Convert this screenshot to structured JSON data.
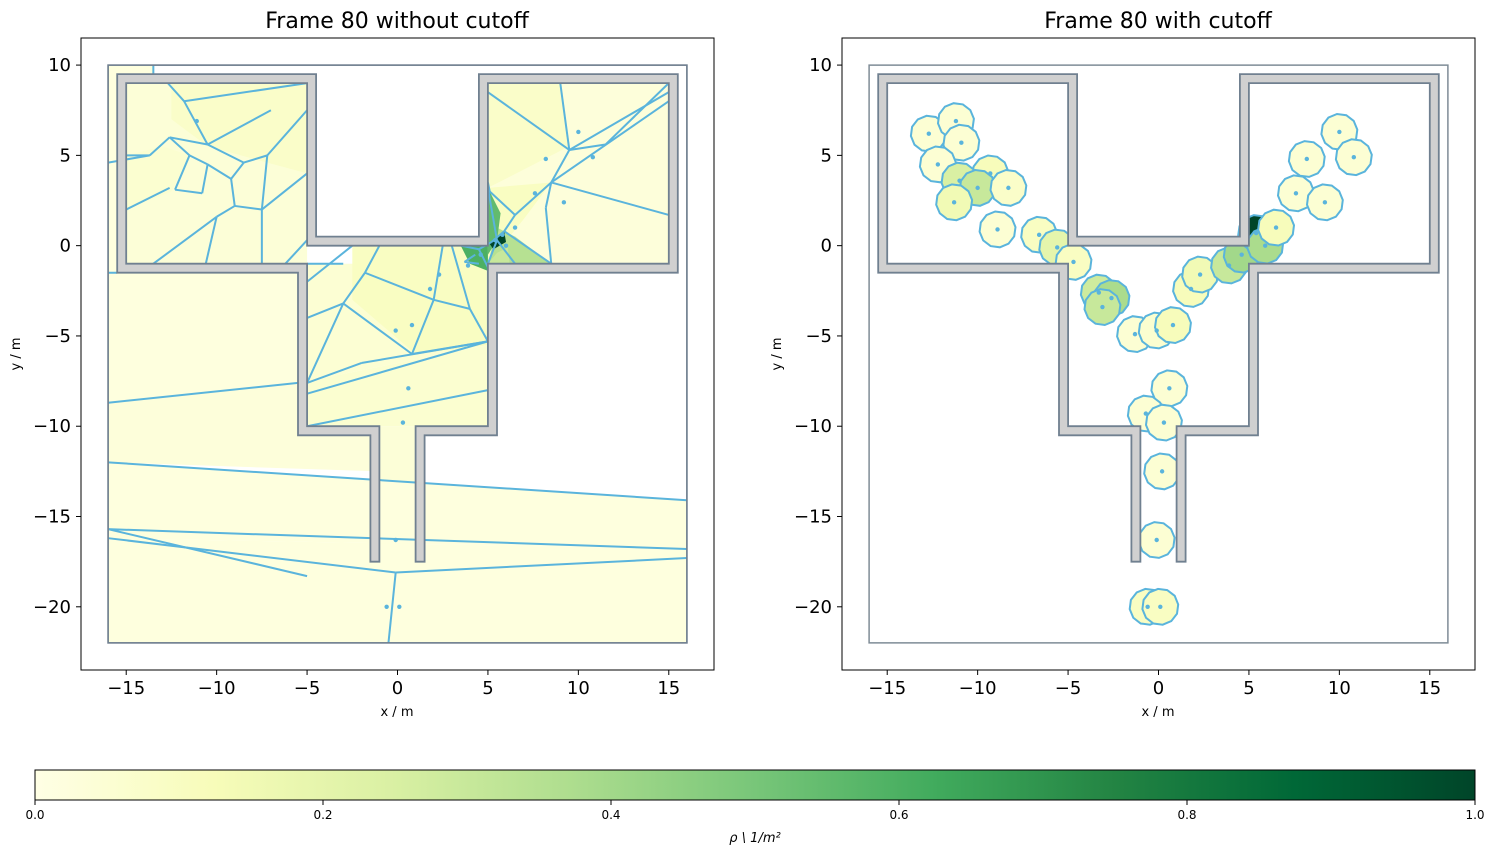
{
  "chart_data": [
    {
      "type": "voronoi-map",
      "title": "Frame 80 without cutoff",
      "xlabel": "x / m",
      "ylabel": "y / m",
      "xlim": [
        -17.5,
        17.5
      ],
      "ylim": [
        -23.5,
        11.5
      ],
      "xticks": [
        -15,
        -10,
        -5,
        0,
        5,
        10,
        15
      ],
      "yticks": [
        10,
        5,
        0,
        -5,
        -10,
        -15,
        -20
      ],
      "tick_labels_x": [
        "−15",
        "−10",
        "−5",
        "0",
        "5",
        "10",
        "15"
      ],
      "tick_labels_y": [
        "10",
        "5",
        "0",
        "−5",
        "−10",
        "−15",
        "−20"
      ],
      "points": [
        [
          -11.1,
          6.9
        ],
        [
          8.2,
          4.8
        ],
        [
          10.0,
          6.3
        ],
        [
          10.8,
          4.9
        ],
        [
          7.6,
          2.9
        ],
        [
          9.2,
          2.4
        ],
        [
          6.5,
          1.0
        ],
        [
          5.8,
          0.6
        ],
        [
          5.4,
          0.3
        ],
        [
          6.0,
          0.0
        ],
        [
          4.6,
          -0.5
        ],
        [
          3.9,
          -1.1
        ],
        [
          2.3,
          -1.6
        ],
        [
          1.8,
          -2.4
        ],
        [
          0.8,
          -4.4
        ],
        [
          -0.1,
          -4.7
        ],
        [
          0.6,
          -7.9
        ],
        [
          0.3,
          -9.8
        ],
        [
          -0.1,
          -16.3
        ],
        [
          -0.6,
          -20.0
        ],
        [
          0.1,
          -20.0
        ]
      ]
    },
    {
      "type": "voronoi-map",
      "title": "Frame 80 with cutoff",
      "xlabel": "x / m",
      "ylabel": "y / m",
      "xlim": [
        -17.5,
        17.5
      ],
      "ylim": [
        -23.5,
        11.5
      ],
      "xticks": [
        -15,
        -10,
        -5,
        0,
        5,
        10,
        15
      ],
      "yticks": [
        10,
        5,
        0,
        -5,
        -10,
        -15,
        -20
      ],
      "tick_labels_x": [
        "−15",
        "−10",
        "−5",
        "0",
        "5",
        "10",
        "15"
      ],
      "tick_labels_y": [
        "10",
        "5",
        "0",
        "−5",
        "−10",
        "−15",
        "−20"
      ],
      "cutoff_radius": 1.0,
      "cells": [
        {
          "x": -12.7,
          "y": 6.2,
          "rho": 0.05
        },
        {
          "x": -11.2,
          "y": 6.9,
          "rho": 0.05
        },
        {
          "x": -10.9,
          "y": 5.7,
          "rho": 0.05
        },
        {
          "x": -12.2,
          "y": 4.5,
          "rho": 0.05
        },
        {
          "x": -9.3,
          "y": 4.0,
          "rho": 0.12
        },
        {
          "x": -11.0,
          "y": 3.6,
          "rho": 0.25
        },
        {
          "x": -10.0,
          "y": 3.2,
          "rho": 0.3
        },
        {
          "x": -8.3,
          "y": 3.2,
          "rho": 0.08
        },
        {
          "x": -11.3,
          "y": 2.4,
          "rho": 0.15
        },
        {
          "x": -8.9,
          "y": 0.9,
          "rho": 0.05
        },
        {
          "x": -6.6,
          "y": 0.6,
          "rho": 0.1
        },
        {
          "x": -5.6,
          "y": -0.1,
          "rho": 0.2
        },
        {
          "x": -4.7,
          "y": -0.9,
          "rho": 0.1
        },
        {
          "x": -3.3,
          "y": -2.6,
          "rho": 0.28
        },
        {
          "x": -2.6,
          "y": -2.9,
          "rho": 0.38
        },
        {
          "x": -3.1,
          "y": -3.4,
          "rho": 0.3
        },
        {
          "x": -1.3,
          "y": -4.9,
          "rho": 0.05
        },
        {
          "x": -0.1,
          "y": -4.7,
          "rho": 0.06
        },
        {
          "x": 0.8,
          "y": -4.4,
          "rho": 0.12
        },
        {
          "x": 1.8,
          "y": -2.4,
          "rho": 0.12
        },
        {
          "x": 2.3,
          "y": -1.6,
          "rho": 0.15
        },
        {
          "x": 3.9,
          "y": -1.1,
          "rho": 0.3
        },
        {
          "x": 4.6,
          "y": -0.5,
          "rho": 0.4
        },
        {
          "x": 5.4,
          "y": 0.7,
          "rho": 1.0
        },
        {
          "x": 5.9,
          "y": 0.0,
          "rho": 0.38
        },
        {
          "x": 6.5,
          "y": 1.0,
          "rho": 0.12
        },
        {
          "x": 7.6,
          "y": 2.9,
          "rho": 0.05
        },
        {
          "x": 9.2,
          "y": 2.4,
          "rho": 0.05
        },
        {
          "x": 8.2,
          "y": 4.8,
          "rho": 0.05
        },
        {
          "x": 10.0,
          "y": 6.3,
          "rho": 0.05
        },
        {
          "x": 10.8,
          "y": 4.9,
          "rho": 0.05
        },
        {
          "x": 0.6,
          "y": -7.9,
          "rho": 0.05
        },
        {
          "x": -0.7,
          "y": -9.3,
          "rho": 0.05
        },
        {
          "x": 0.3,
          "y": -9.8,
          "rho": 0.05
        },
        {
          "x": 0.2,
          "y": -12.5,
          "rho": 0.05
        },
        {
          "x": -0.1,
          "y": -16.3,
          "rho": 0.05
        },
        {
          "x": -0.6,
          "y": -20.0,
          "rho": 0.1
        },
        {
          "x": 0.1,
          "y": -20.0,
          "rho": 0.1
        }
      ]
    }
  ],
  "colorbar": {
    "label": "ρ \\ 1/m²",
    "range": [
      0.0,
      1.0
    ],
    "ticks": [
      "0.0",
      "0.2",
      "0.4",
      "0.6",
      "0.8",
      "1.0"
    ],
    "colormap": "YlGn",
    "colors": [
      "#ffffe5",
      "#f7fcb9",
      "#d9f0a3",
      "#addd8e",
      "#78c679",
      "#41ab5d",
      "#238443",
      "#006837",
      "#004529"
    ]
  },
  "style": {
    "cell_edge": "#5ab4dc",
    "geometry_fill": "#d0d0d0",
    "geometry_edge": "#708090",
    "walkable_edge": "#7f8c96"
  }
}
